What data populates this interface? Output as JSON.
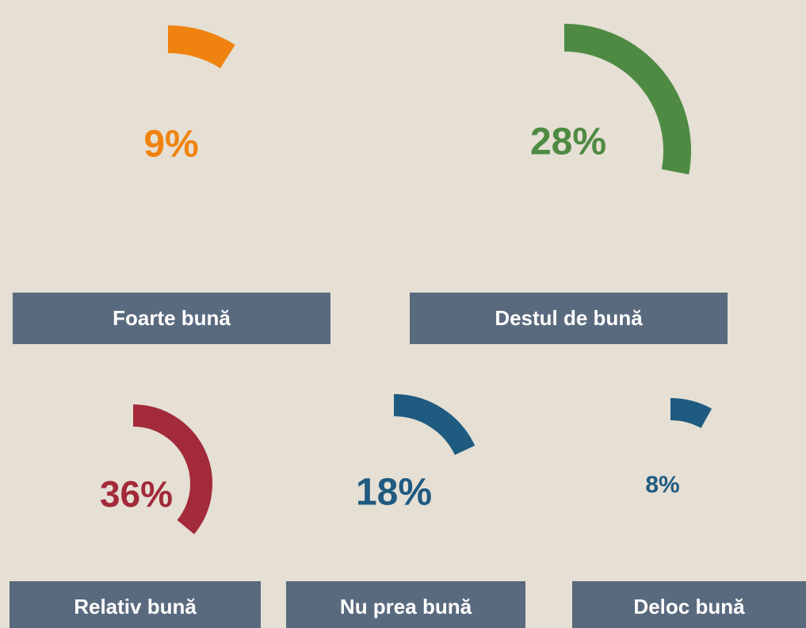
{
  "chart_data": [
    {
      "type": "gauge",
      "title": "Foarte bună",
      "values": [
        9
      ],
      "value_labels": [
        "9%"
      ],
      "color": "#f0830f"
    },
    {
      "type": "gauge",
      "title": "Destul de bună",
      "values": [
        28
      ],
      "value_labels": [
        "28%"
      ],
      "color": "#4e8a42"
    },
    {
      "type": "gauge",
      "title": "Relativ bună",
      "values": [
        36
      ],
      "value_labels": [
        "36%"
      ],
      "color": "#a32a3a"
    },
    {
      "type": "gauge",
      "title": "Nu prea bună",
      "values": [
        18
      ],
      "value_labels": [
        "18%"
      ],
      "color": "#1f5a80"
    },
    {
      "type": "gauge",
      "title": "Deloc bună",
      "values": [
        8
      ],
      "value_labels": [
        "8%"
      ],
      "color": "#1f5a80"
    }
  ]
}
